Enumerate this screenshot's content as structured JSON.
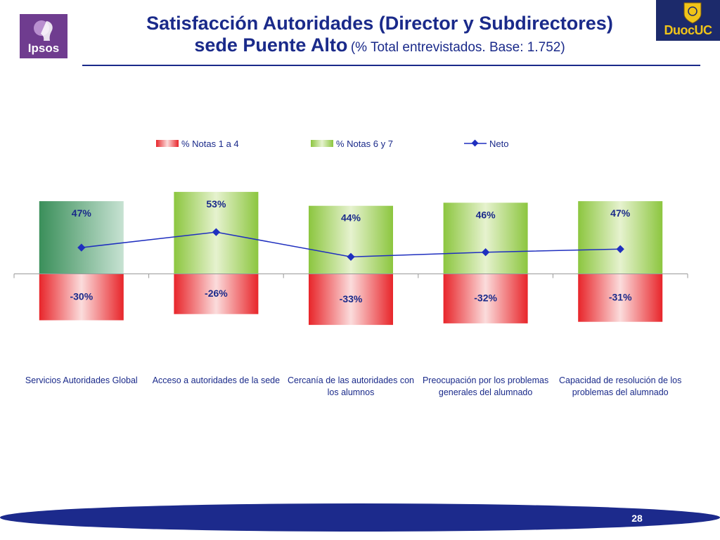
{
  "header": {
    "title_line1": "Satisfacción Autoridades (Director y Subdirectores)",
    "title_line2": "sede Puente Alto",
    "title_sub": "(% Total entrevistados. Base: 1.752)",
    "logo_left": "Ipsos",
    "logo_right": "DuocUC"
  },
  "footer": {
    "page_number": "28"
  },
  "colors": {
    "title": "#1a2a8a",
    "neto_line": "#1f2fbf",
    "negative_bar": "#e8252a",
    "positive_bar": "#8cc63f",
    "positive_bar_first": "#3a8f5a",
    "footer_band": "#1c2a8c"
  },
  "chart_data": {
    "type": "bar",
    "categories": [
      "Servicios Autoridades Global",
      "Acceso a autoridades de la sede",
      "Cercanía de las autoridades con los alumnos",
      "Preocupación por los problemas generales del alumnado",
      "Capacidad de resolución de los problemas del alumnado"
    ],
    "series": [
      {
        "name": "% Notas 1 a 4",
        "values": [
          -30,
          -26,
          -33,
          -32,
          -31
        ]
      },
      {
        "name": "% Notas 6 y 7",
        "values": [
          47,
          53,
          44,
          46,
          47
        ]
      },
      {
        "name": "Neto",
        "type": "line",
        "values": [
          17,
          27,
          11,
          14,
          16
        ]
      }
    ],
    "negative_labels": [
      "-30%",
      "-26%",
      "-33%",
      "-32%",
      "-31%"
    ],
    "positive_labels": [
      "47%",
      "53%",
      "44%",
      "46%",
      "47%"
    ],
    "legend_position": "top",
    "stacked": true,
    "ylim": [
      -35,
      55
    ]
  }
}
